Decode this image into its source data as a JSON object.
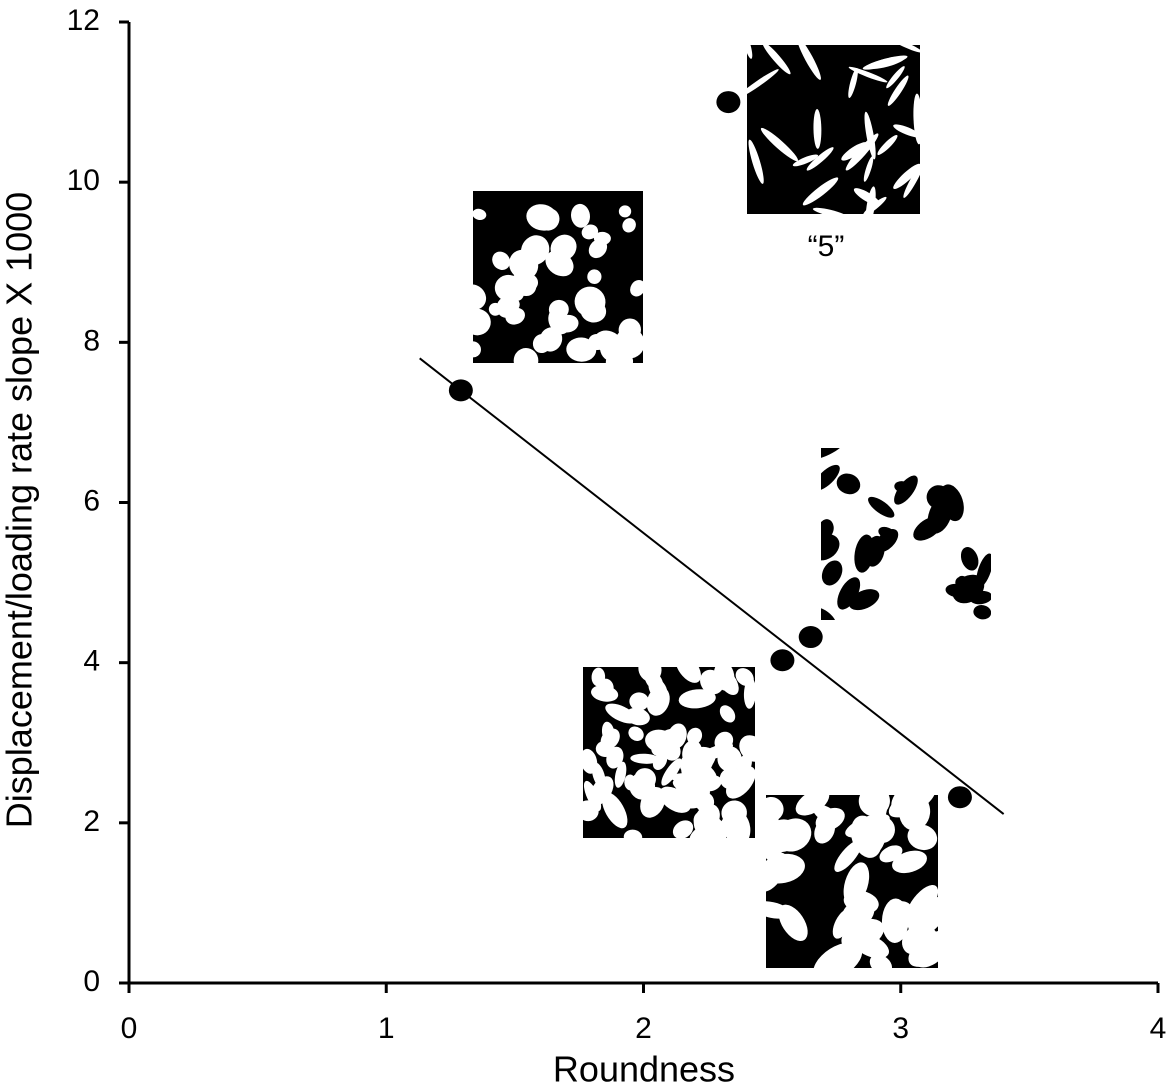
{
  "chart_data": {
    "type": "scatter",
    "x_label": "Roundness",
    "y_label": "Displacement/loading rate slope X 1000",
    "x": [
      1.29,
      2.33,
      2.54,
      2.65,
      3.23
    ],
    "values": [
      7.4,
      11.0,
      4.03,
      4.32,
      2.32
    ],
    "color": "#000000",
    "trendline": {
      "x": [
        1.13,
        3.4
      ],
      "y": [
        7.8,
        2.11
      ]
    },
    "annotation": "“5”",
    "xlim": [
      0,
      4
    ],
    "xticks": [
      0,
      1,
      2,
      3,
      4
    ],
    "ylim": [
      0,
      12
    ],
    "yticks": [
      0,
      2,
      4,
      6,
      8,
      10,
      12
    ],
    "grid": false
  }
}
